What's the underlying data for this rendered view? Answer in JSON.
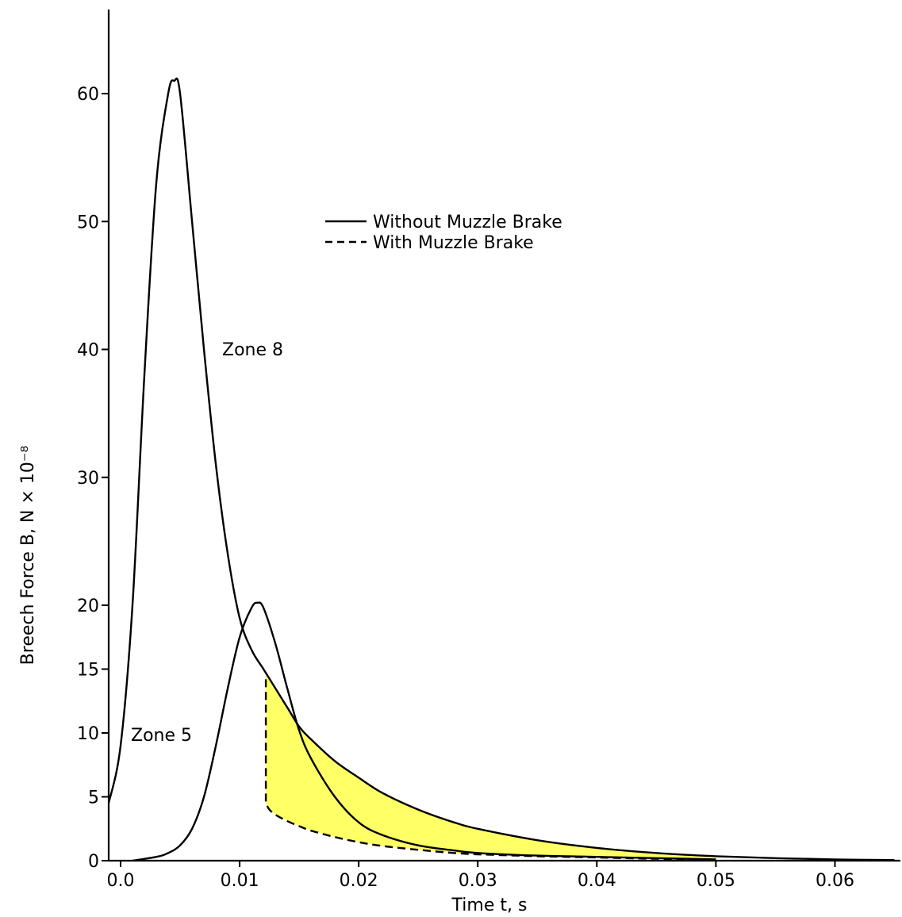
{
  "chart_data": {
    "type": "line",
    "xlabel": "Time t, s",
    "ylabel": "Breech Force B, N × 10⁻⁸",
    "xlim": [
      -0.001,
      0.0655
    ],
    "ylim": [
      0,
      66
    ],
    "x_ticks": [
      0.0,
      0.01,
      0.02,
      0.03,
      0.04,
      0.05,
      0.06
    ],
    "x_tick_labels": [
      "0.0",
      "0.01",
      "0.02",
      "0.03",
      "0.04",
      "0.05",
      "0.06"
    ],
    "y_ticks": [
      0,
      5,
      10,
      15,
      20,
      30,
      40,
      50,
      60
    ],
    "y_tick_labels": [
      "0",
      "5",
      "10",
      "15",
      "20",
      "30",
      "40",
      "50",
      "60"
    ],
    "grid": false,
    "legend_position": "top-center",
    "legend": [
      {
        "label": "Without Muzzle Brake",
        "style": "solid"
      },
      {
        "label": "With Muzzle Brake",
        "style": "dashed"
      }
    ],
    "annotations": [
      "Zone 8",
      "Zone 5"
    ],
    "fill_color": "#ffff66",
    "series": [
      {
        "style": "solid",
        "x": [
          -0.001,
          0.0,
          0.001,
          0.002,
          0.003,
          0.004,
          0.0045,
          0.005,
          0.006,
          0.007,
          0.008,
          0.009,
          0.01,
          0.011,
          0.012,
          0.013,
          0.014,
          0.015,
          0.016,
          0.018,
          0.02,
          0.022,
          0.025,
          0.028,
          0.03,
          0.035,
          0.04,
          0.045,
          0.05,
          0.055,
          0.06,
          0.065
        ],
        "y": [
          4.5,
          9,
          20,
          38,
          53,
          60,
          61,
          60,
          50,
          40,
          31,
          24,
          19,
          16.5,
          15,
          13.5,
          12,
          10.5,
          9.5,
          7.8,
          6.5,
          5.3,
          4,
          3,
          2.5,
          1.6,
          1.0,
          0.6,
          0.35,
          0.2,
          0.1,
          0.05
        ]
      },
      {
        "style": "solid",
        "x": [
          0.001,
          0.003,
          0.004,
          0.005,
          0.006,
          0.007,
          0.008,
          0.009,
          0.01,
          0.011,
          0.0115,
          0.012,
          0.013,
          0.014,
          0.015,
          0.016,
          0.018,
          0.02,
          0.022,
          0.025,
          0.028,
          0.03,
          0.035,
          0.04,
          0.045,
          0.05
        ],
        "y": [
          0,
          0.3,
          0.6,
          1.2,
          2.5,
          5,
          9,
          13.5,
          17.5,
          19.8,
          20.2,
          19.8,
          17,
          13.5,
          10.2,
          8,
          5,
          3,
          2,
          1.2,
          0.8,
          0.6,
          0.4,
          0.3,
          0.2,
          0.1
        ]
      },
      {
        "style": "dashed",
        "x": [
          0.0122,
          0.0122,
          0.0125,
          0.013,
          0.014,
          0.015,
          0.016,
          0.018,
          0.02,
          0.022,
          0.025,
          0.028,
          0.03,
          0.035,
          0.04,
          0.045,
          0.05
        ],
        "y": [
          14.2,
          4.5,
          4.0,
          3.6,
          3.1,
          2.7,
          2.35,
          1.85,
          1.45,
          1.15,
          0.85,
          0.6,
          0.5,
          0.35,
          0.25,
          0.15,
          0.1
        ]
      }
    ]
  }
}
